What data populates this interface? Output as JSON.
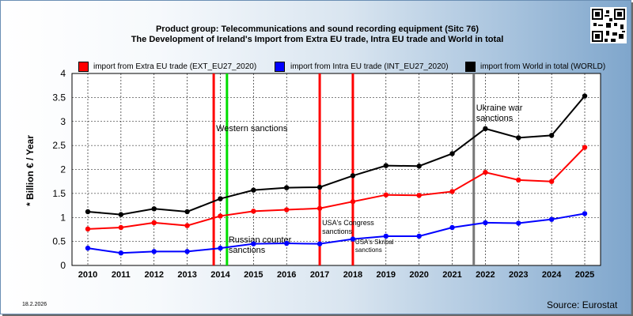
{
  "header": {
    "title_line1": "Product group: Telecommunications and sound recording equipment (Sitc 76)",
    "title_line2": "The Development of Ireland's Import from Extra EU trade, Intra EU trade and World in total"
  },
  "footer": {
    "date": "18.2.2026",
    "source": "Source: Eurostat"
  },
  "chart_data": {
    "type": "line",
    "ylabel": "* Billion € / Year",
    "x": [
      2010,
      2011,
      2012,
      2013,
      2014,
      2015,
      2016,
      2017,
      2018,
      2019,
      2020,
      2021,
      2022,
      2023,
      2024,
      2025
    ],
    "ylim": [
      0,
      4
    ],
    "yticks": [
      "0",
      "0.5",
      "1",
      "1.5",
      "2",
      "2.5",
      "3",
      "3.5",
      "4"
    ],
    "grid": true,
    "legend_position": "top",
    "series": [
      {
        "name": "import from Extra EU trade (EXT_EU27_2020)",
        "color": "#ff0000",
        "values": [
          0.76,
          0.79,
          0.89,
          0.83,
          1.03,
          1.13,
          1.16,
          1.19,
          1.33,
          1.47,
          1.46,
          1.54,
          1.94,
          1.78,
          1.75,
          2.46
        ]
      },
      {
        "name": "import from Intra EU trade (INT_EU27_2020)",
        "color": "#0000ff",
        "values": [
          0.36,
          0.26,
          0.29,
          0.29,
          0.36,
          0.45,
          0.46,
          0.45,
          0.55,
          0.61,
          0.61,
          0.79,
          0.89,
          0.88,
          0.96,
          1.08
        ]
      },
      {
        "name": "import from World in total (WORLD)",
        "color": "#000000",
        "values": [
          1.12,
          1.06,
          1.18,
          1.12,
          1.39,
          1.57,
          1.62,
          1.63,
          1.87,
          2.08,
          2.07,
          2.33,
          2.85,
          2.66,
          2.71,
          3.53
        ]
      }
    ],
    "events": [
      {
        "x": 2013.8,
        "color": "#ff0000",
        "label": "Western sanctions"
      },
      {
        "x": 2014.2,
        "color": "#00dd00",
        "label": "Russian counter sanctions"
      },
      {
        "x": 2017.0,
        "color": "#ff0000",
        "label": "USA's Congress sanctions"
      },
      {
        "x": 2018.0,
        "color": "#ff0000",
        "label": "USA's Skribal sanctions"
      },
      {
        "x": 2021.65,
        "color": "#777777",
        "label": "Ukraine war sanctions"
      }
    ]
  }
}
